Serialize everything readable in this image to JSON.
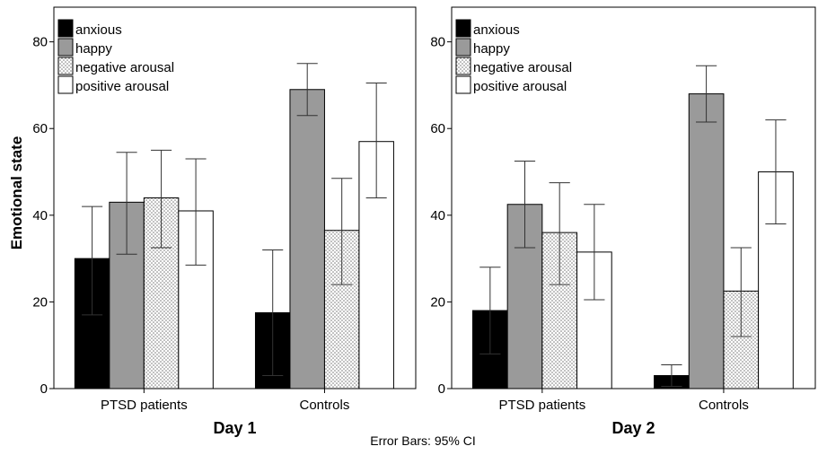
{
  "chart_data": {
    "type": "bar",
    "ylabel": "Emotional state",
    "ylim": [
      0,
      88
    ],
    "yticks": [
      0,
      20,
      40,
      60,
      80
    ],
    "legend_position": "top-left",
    "footnote": "Error Bars: 95% CI",
    "series": [
      {
        "name": "anxious",
        "fill": "#000000",
        "pattern": "solid"
      },
      {
        "name": "happy",
        "fill": "#9a9a9a",
        "pattern": "solid"
      },
      {
        "name": "negative arousal",
        "fill": "#e6e6e6",
        "pattern": "dots"
      },
      {
        "name": "positive arousal",
        "fill": "#ffffff",
        "pattern": "solid"
      }
    ],
    "panels": [
      {
        "xlabel": "Day 1",
        "categories": [
          "PTSD patients",
          "Controls"
        ],
        "values": [
          [
            30.0,
            43.0,
            44.0,
            41.0
          ],
          [
            17.5,
            69.0,
            36.5,
            57.0
          ]
        ],
        "ci_lower": [
          [
            17.0,
            31.0,
            32.5,
            28.5
          ],
          [
            3.0,
            63.0,
            24.0,
            44.0
          ]
        ],
        "ci_upper": [
          [
            42.0,
            54.5,
            55.0,
            53.0
          ],
          [
            32.0,
            75.0,
            48.5,
            70.5
          ]
        ]
      },
      {
        "xlabel": "Day 2",
        "categories": [
          "PTSD patients",
          "Controls"
        ],
        "values": [
          [
            18.0,
            42.5,
            36.0,
            31.5
          ],
          [
            3.0,
            68.0,
            22.5,
            50.0
          ]
        ],
        "ci_lower": [
          [
            8.0,
            32.5,
            24.0,
            20.5
          ],
          [
            0.5,
            61.5,
            12.0,
            38.0
          ]
        ],
        "ci_upper": [
          [
            28.0,
            52.5,
            47.5,
            42.5
          ],
          [
            5.5,
            74.5,
            32.5,
            62.0
          ]
        ]
      }
    ]
  }
}
